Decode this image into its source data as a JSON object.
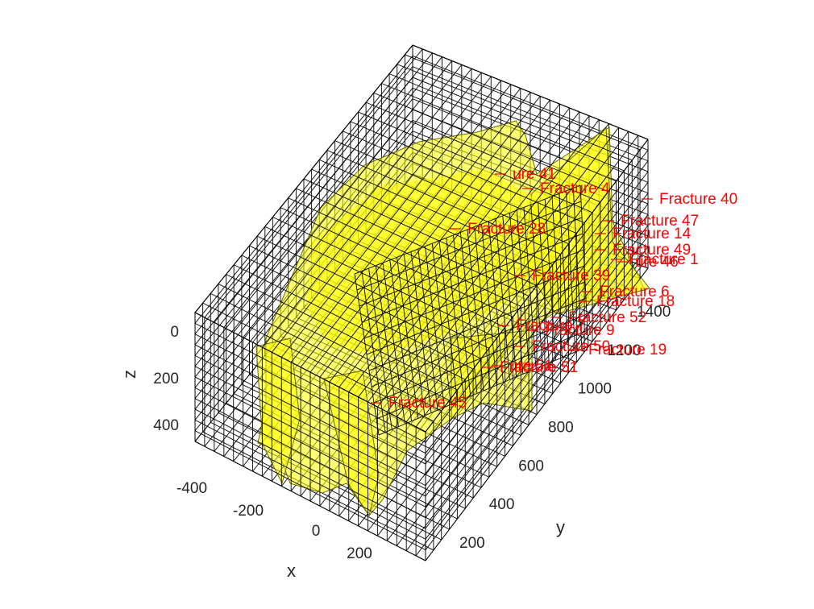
{
  "chart_data": {
    "type": "3d-wireframe",
    "xlabel": "x",
    "ylabel": "y",
    "zlabel": "z",
    "x_ticks": [
      -400,
      -200,
      0,
      200
    ],
    "y_ticks": [
      200,
      400,
      600,
      800,
      1000,
      1200,
      1400
    ],
    "z_ticks": [
      0,
      200,
      400
    ],
    "z_reversed": true,
    "grid_mesh": true,
    "colors": {
      "mesh": "#000000",
      "fracture_fill": "#ffff00",
      "labels": "#ff0000"
    },
    "fracture_labels": [
      "Fracture 40",
      "Fracture 47",
      "Fracture 14",
      "Fracture 49",
      "Fracture 1",
      "ure 46",
      "Fracture 28",
      "Fracture 4",
      "ure 41",
      "Fracture 39",
      "Fracture 52",
      "Fracture 9",
      "Fracture 50",
      "Fracture 19",
      "Fracture 51",
      "ure 51",
      "Fracture 45",
      "Fracture 18",
      "Fracture 6",
      "Fracture 7"
    ]
  }
}
